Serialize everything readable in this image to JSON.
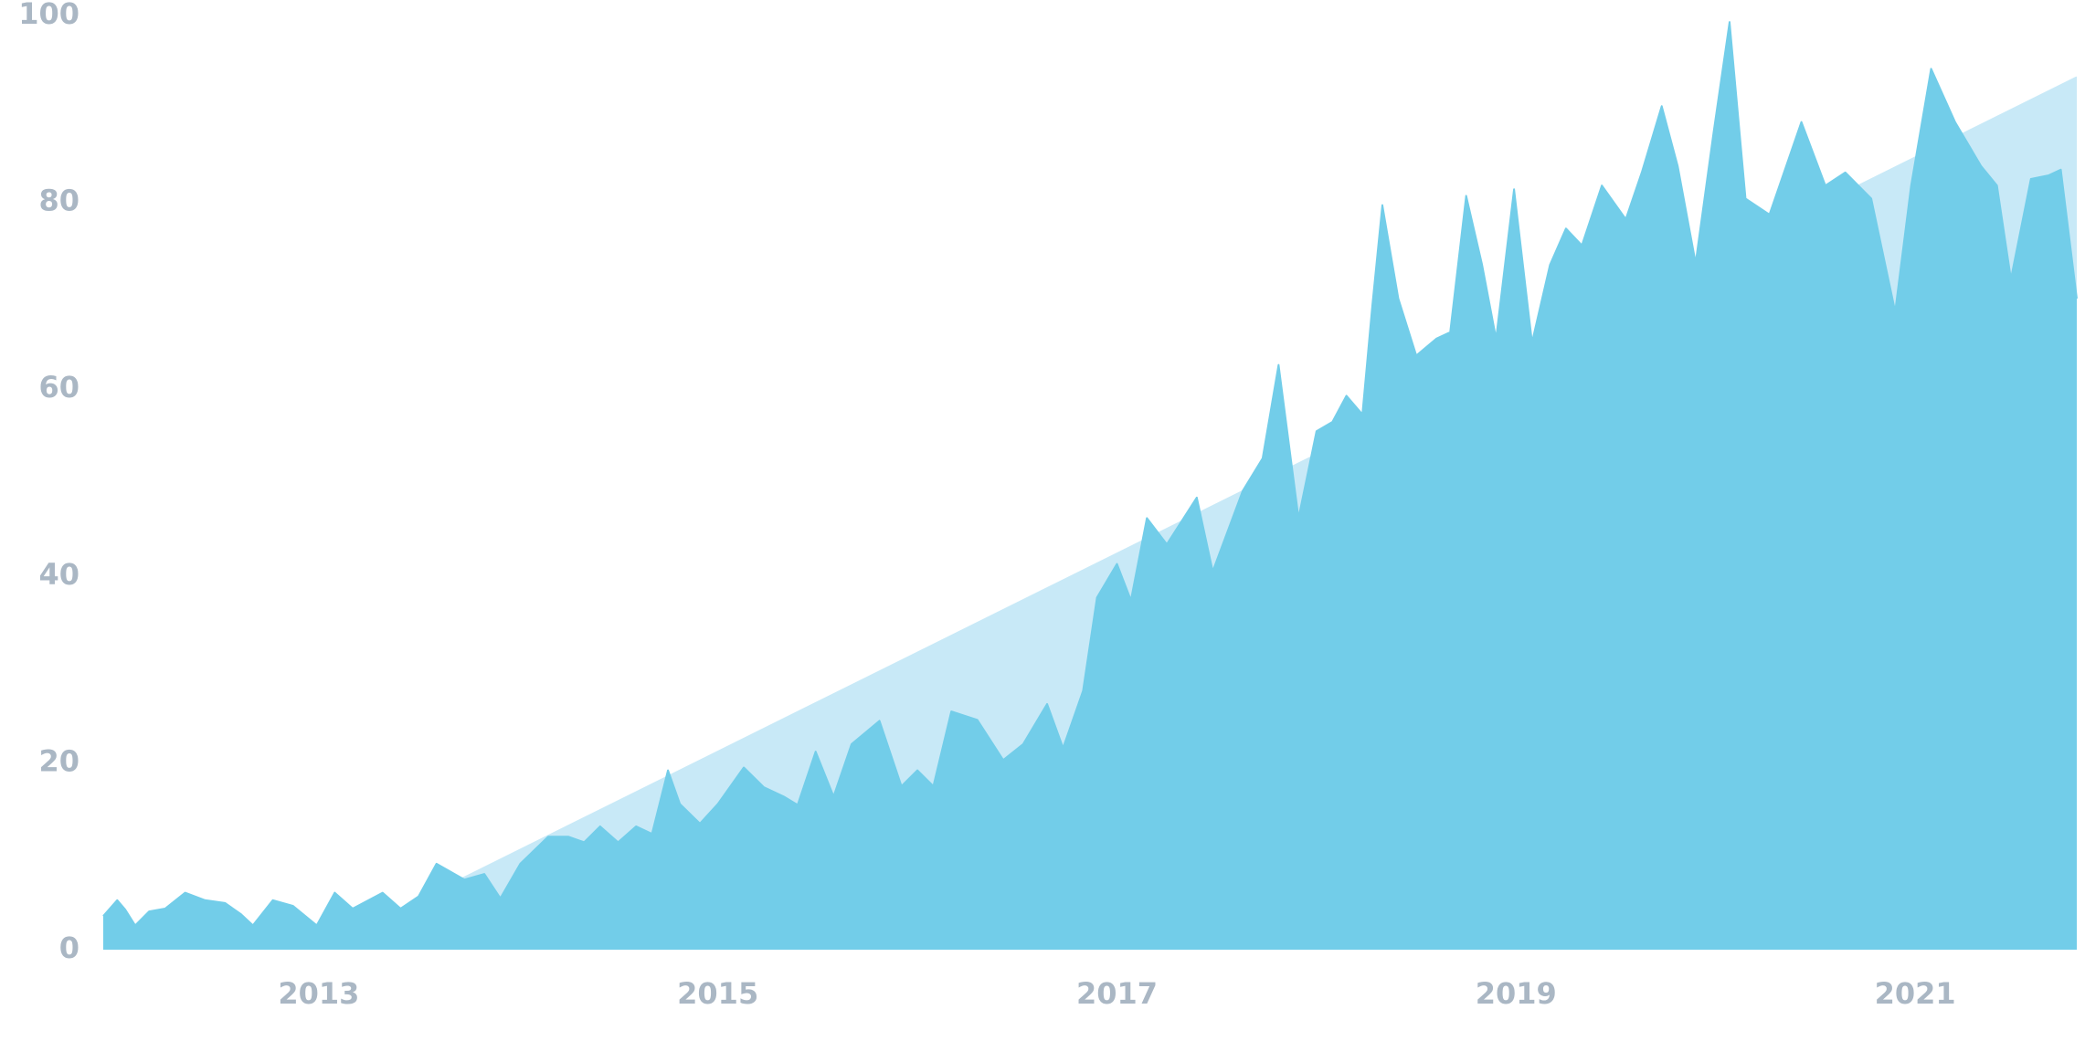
{
  "chart_data": {
    "type": "area",
    "x": [
      2011.92,
      2011.99,
      2012.03,
      2012.08,
      2012.15,
      2012.23,
      2012.33,
      2012.43,
      2012.53,
      2012.61,
      2012.67,
      2012.77,
      2012.87,
      2012.99,
      2013.08,
      2013.17,
      2013.32,
      2013.41,
      2013.5,
      2013.59,
      2013.73,
      2013.83,
      2013.91,
      2014.01,
      2014.15,
      2014.25,
      2014.33,
      2014.41,
      2014.5,
      2014.59,
      2014.67,
      2014.75,
      2014.81,
      2014.91,
      2015.0,
      2015.13,
      2015.23,
      2015.33,
      2015.4,
      2015.49,
      2015.58,
      2015.67,
      2015.81,
      2015.92,
      2016.0,
      2016.08,
      2016.17,
      2016.3,
      2016.43,
      2016.53,
      2016.65,
      2016.73,
      2016.83,
      2016.9,
      2017.0,
      2017.07,
      2017.15,
      2017.25,
      2017.4,
      2017.48,
      2017.63,
      2017.73,
      2017.81,
      2017.91,
      2018.0,
      2018.08,
      2018.15,
      2018.23,
      2018.28,
      2018.33,
      2018.41,
      2018.5,
      2018.6,
      2018.67,
      2018.75,
      2018.83,
      2018.9,
      2018.99,
      2019.08,
      2019.17,
      2019.25,
      2019.33,
      2019.43,
      2019.55,
      2019.63,
      2019.73,
      2019.81,
      2019.9,
      2019.99,
      2020.07,
      2020.15,
      2020.27,
      2020.43,
      2020.55,
      2020.65,
      2020.78,
      2020.9,
      2020.98,
      2021.08,
      2021.2,
      2021.33,
      2021.41,
      2021.48,
      2021.58,
      2021.67,
      2021.73,
      2021.81
    ],
    "series": [
      {
        "color": "#c8e9f7",
        "x": [
          2013.33,
          2021.81
        ],
        "values": [
          3.5,
          93.4
        ]
      },
      {
        "color": "#72cde9",
        "values": [
          3.6,
          5.3,
          4.3,
          2.6,
          4.1,
          4.4,
          6.1,
          5.3,
          5.0,
          3.8,
          2.6,
          5.3,
          4.7,
          2.6,
          6.1,
          4.4,
          6.1,
          4.4,
          5.7,
          9.2,
          7.5,
          8.1,
          5.5,
          9.2,
          12.1,
          12.1,
          11.5,
          13.2,
          11.5,
          13.2,
          12.4,
          19.2,
          15.6,
          13.5,
          15.6,
          19.5,
          17.4,
          16.4,
          15.5,
          21.2,
          16.4,
          22.0,
          24.5,
          17.5,
          19.2,
          17.5,
          25.5,
          24.6,
          20.3,
          22.0,
          26.3,
          21.6,
          27.7,
          37.7,
          41.3,
          37.4,
          46.2,
          43.4,
          48.4,
          40.5,
          49.1,
          52.6,
          62.6,
          46.2,
          55.5,
          56.5,
          59.3,
          57.3,
          69.0,
          79.7,
          69.7,
          63.6,
          65.4,
          66.1,
          80.7,
          73.3,
          65.4,
          81.4,
          65.0,
          73.3,
          77.2,
          75.4,
          81.8,
          78.2,
          83.2,
          90.3,
          83.9,
          73.5,
          87.5,
          99.3,
          80.4,
          78.7,
          88.6,
          81.8,
          83.2,
          80.4,
          68.3,
          81.8,
          94.3,
          88.6,
          83.9,
          81.8,
          71.8,
          82.5,
          82.9,
          83.5,
          69.7
        ]
      }
    ],
    "xlim": [
      2011.92,
      2021.81
    ],
    "xticks": [
      2013,
      2015,
      2017,
      2019,
      2021
    ],
    "ylim": [
      0,
      100
    ],
    "yticks": [
      0,
      20,
      40,
      60,
      80,
      100
    ],
    "grid": false
  }
}
